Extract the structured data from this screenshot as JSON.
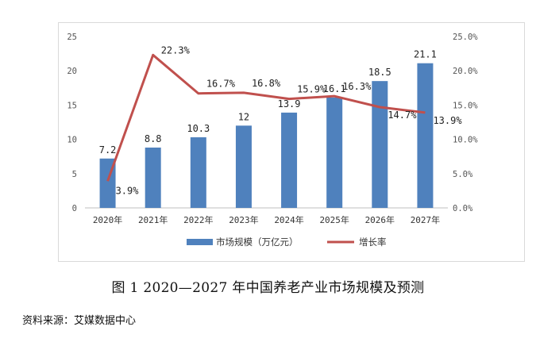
{
  "caption": "图 1   2020—2027 年中国养老产业市场规模及预测",
  "source": "资料来源：艾媒数据中心",
  "chart_data": {
    "type": "bar+line",
    "categories": [
      "2020年",
      "2021年",
      "2022年",
      "2023年",
      "2024年",
      "2025年",
      "2026年",
      "2027年"
    ],
    "series": [
      {
        "name": "市场规模（万亿元）",
        "type": "bar",
        "axis": "left",
        "color": "#4f81bd",
        "values": [
          7.2,
          8.8,
          10.3,
          12,
          13.9,
          16.1,
          18.5,
          21.1
        ],
        "labels": [
          "7.2",
          "8.8",
          "10.3",
          "12",
          "13.9",
          "16.1",
          "18.5",
          "21.1"
        ]
      },
      {
        "name": "增长率",
        "type": "line",
        "axis": "right",
        "color": "#c0504d",
        "values": [
          3.9,
          22.3,
          16.7,
          16.8,
          15.9,
          16.3,
          14.7,
          13.9
        ],
        "labels": [
          "3.9%",
          "22.3%",
          "16.7%",
          "16.8%",
          "15.9%",
          "16.3%",
          "14.7%",
          "13.9%"
        ]
      }
    ],
    "ylim_left": [
      0,
      25
    ],
    "yticks_left": [
      "0",
      "5",
      "10",
      "15",
      "20",
      "25"
    ],
    "ylim_right": [
      0,
      25
    ],
    "yticks_right": [
      "0.0%",
      "5.0%",
      "10.0%",
      "15.0%",
      "20.0%",
      "25.0%"
    ],
    "legend_position": "bottom",
    "grid": false
  }
}
